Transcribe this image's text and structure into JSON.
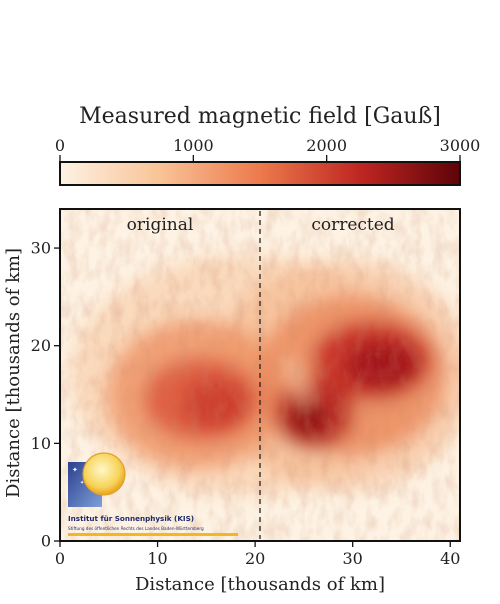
{
  "chart_data": {
    "type": "heatmap",
    "title": "Measured magnetic field [Gauß]",
    "xlabel": "Distance [thousands of km]",
    "ylabel": "Distance [thousands of km]",
    "xlim": [
      0,
      41
    ],
    "ylim": [
      0,
      34
    ],
    "x_ticks": [
      0,
      10,
      20,
      30,
      40
    ],
    "y_ticks": [
      0,
      10,
      20,
      30
    ],
    "divider_x": 20.5,
    "panel_labels": [
      "original",
      "corrected"
    ],
    "colorbar": {
      "range": [
        0,
        3000
      ],
      "ticks": [
        0,
        1000,
        2000,
        3000
      ],
      "colors": [
        "#fdf2e3",
        "#f9c396",
        "#ec7a4c",
        "#bf2622",
        "#5e0308"
      ]
    },
    "features": [
      {
        "name": "sunspot-original",
        "center": [
          15,
          15
        ],
        "peak_gauss": 2500
      },
      {
        "name": "sunspot-corrected",
        "center": [
          30,
          18
        ],
        "peak_gauss": 2900
      }
    ]
  },
  "logo": {
    "name": "Institut für Sonnenphysik (KIS)",
    "subtitle": "Stiftung des öffentlichen Rechts des Landes Baden-Württemberg"
  }
}
